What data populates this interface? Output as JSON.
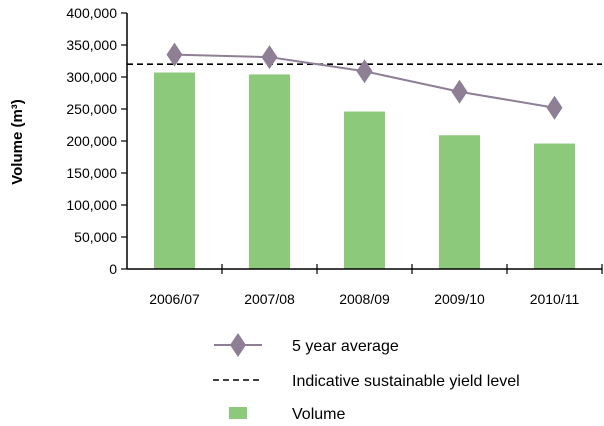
{
  "chart_data": {
    "type": "bar",
    "categories": [
      "2006/07",
      "2007/08",
      "2008/09",
      "2009/10",
      "2010/11"
    ],
    "series": [
      {
        "name": "Volume",
        "kind": "bar",
        "color": "#8dc97a",
        "values": [
          307000,
          304000,
          246000,
          209000,
          196000
        ]
      },
      {
        "name": "5 year average",
        "kind": "line",
        "color": "#8e7f95",
        "values": [
          335000,
          331000,
          309000,
          277000,
          252000
        ]
      },
      {
        "name": "Indicative sustainable yield level",
        "kind": "reference-line",
        "color": "#000000",
        "value": 320000
      }
    ],
    "ylabel": "Volume (m³)",
    "xlabel": "",
    "ylim": [
      0,
      400000
    ],
    "yticks": [
      0,
      50000,
      100000,
      150000,
      200000,
      250000,
      300000,
      350000,
      400000
    ],
    "ytick_labels": [
      "0",
      "50,000",
      "100,000",
      "150,000",
      "200,000",
      "250,000",
      "300,000",
      "350,000",
      "400,000"
    ],
    "grid": false,
    "legend_placement": "bottom",
    "legend": [
      {
        "label": "5 year average",
        "marker": "diamond-line"
      },
      {
        "label": "Indicative sustainable yield level",
        "marker": "dashed-line"
      },
      {
        "label": "Volume",
        "marker": "square"
      }
    ]
  }
}
